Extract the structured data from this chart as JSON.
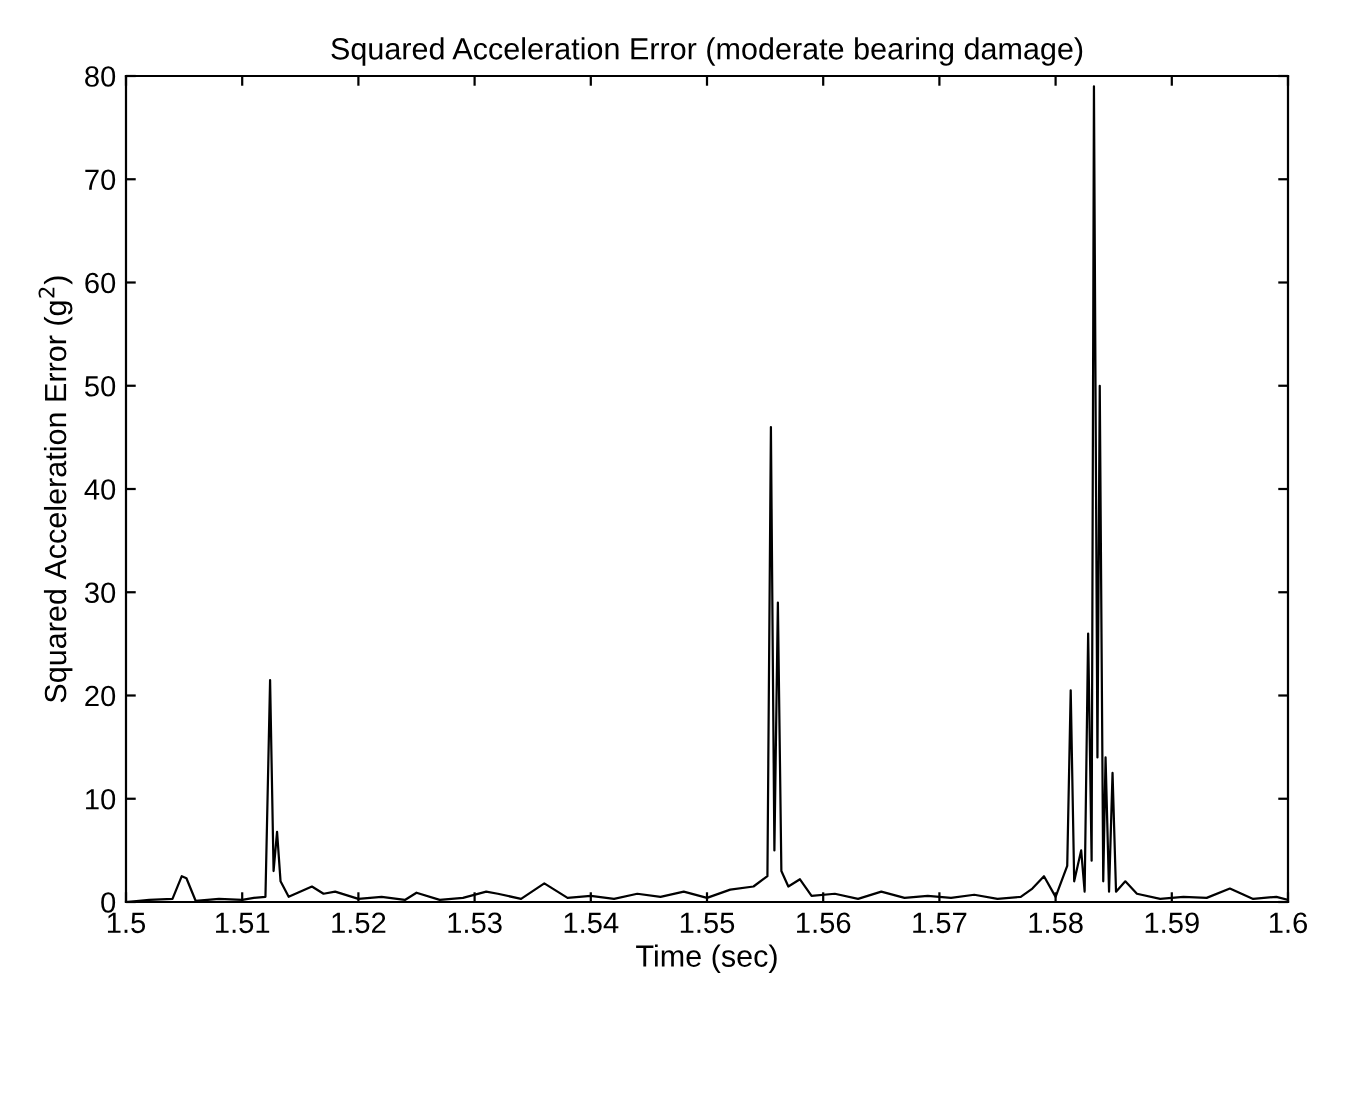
{
  "chart_data": {
    "type": "line",
    "title": "Squared Acceleration Error (moderate bearing damage)",
    "xlabel": "Time (sec)",
    "ylabel": "Squared Acceleration Error (g$^{2}$)",
    "xlim": [
      1.5,
      1.6
    ],
    "xticks": [
      1.5,
      1.51,
      1.52,
      1.53,
      1.54,
      1.55,
      1.56,
      1.57,
      1.58,
      1.59,
      1.6
    ],
    "ylim": [
      0,
      80
    ],
    "yticks": [
      0,
      10,
      20,
      30,
      40,
      50,
      60,
      70,
      80
    ],
    "grid": false,
    "legend": false,
    "series": [
      {
        "color": "#000000",
        "x": [
          1.5,
          1.502,
          1.504,
          1.5048,
          1.5052,
          1.506,
          1.508,
          1.51,
          1.511,
          1.512,
          1.5124,
          1.5127,
          1.513,
          1.5133,
          1.514,
          1.516,
          1.517,
          1.518,
          1.52,
          1.522,
          1.524,
          1.525,
          1.527,
          1.529,
          1.531,
          1.532,
          1.534,
          1.536,
          1.538,
          1.54,
          1.542,
          1.544,
          1.546,
          1.548,
          1.55,
          1.552,
          1.554,
          1.5552,
          1.5555,
          1.5558,
          1.5561,
          1.5564,
          1.557,
          1.558,
          1.559,
          1.561,
          1.563,
          1.565,
          1.567,
          1.569,
          1.571,
          1.573,
          1.575,
          1.577,
          1.578,
          1.579,
          1.58,
          1.581,
          1.5813,
          1.5816,
          1.5822,
          1.5825,
          1.5828,
          1.5831,
          1.5833,
          1.5836,
          1.5838,
          1.5841,
          1.5843,
          1.5846,
          1.5849,
          1.5852,
          1.586,
          1.587,
          1.589,
          1.591,
          1.593,
          1.595,
          1.597,
          1.599,
          1.6
        ],
        "values": [
          0,
          0.2,
          0.3,
          2.5,
          2.3,
          0.1,
          0.3,
          0.2,
          0.4,
          0.5,
          21.5,
          3,
          6.8,
          2,
          0.5,
          1.5,
          0.8,
          1,
          0.3,
          0.5,
          0.2,
          0.9,
          0.2,
          0.4,
          1,
          0.8,
          0.3,
          1.8,
          0.4,
          0.6,
          0.3,
          0.8,
          0.5,
          1,
          0.4,
          1.2,
          1.5,
          2.5,
          46,
          5,
          29,
          3,
          1.5,
          2.2,
          0.6,
          0.8,
          0.3,
          1,
          0.4,
          0.6,
          0.4,
          0.7,
          0.3,
          0.5,
          1.3,
          2.5,
          0.5,
          3.5,
          20.5,
          2,
          5,
          1,
          26,
          4,
          79,
          14,
          50,
          2,
          14,
          1,
          12.5,
          1,
          2,
          0.8,
          0.3,
          0.5,
          0.4,
          1.3,
          0.3,
          0.5,
          0.2
        ]
      }
    ]
  }
}
